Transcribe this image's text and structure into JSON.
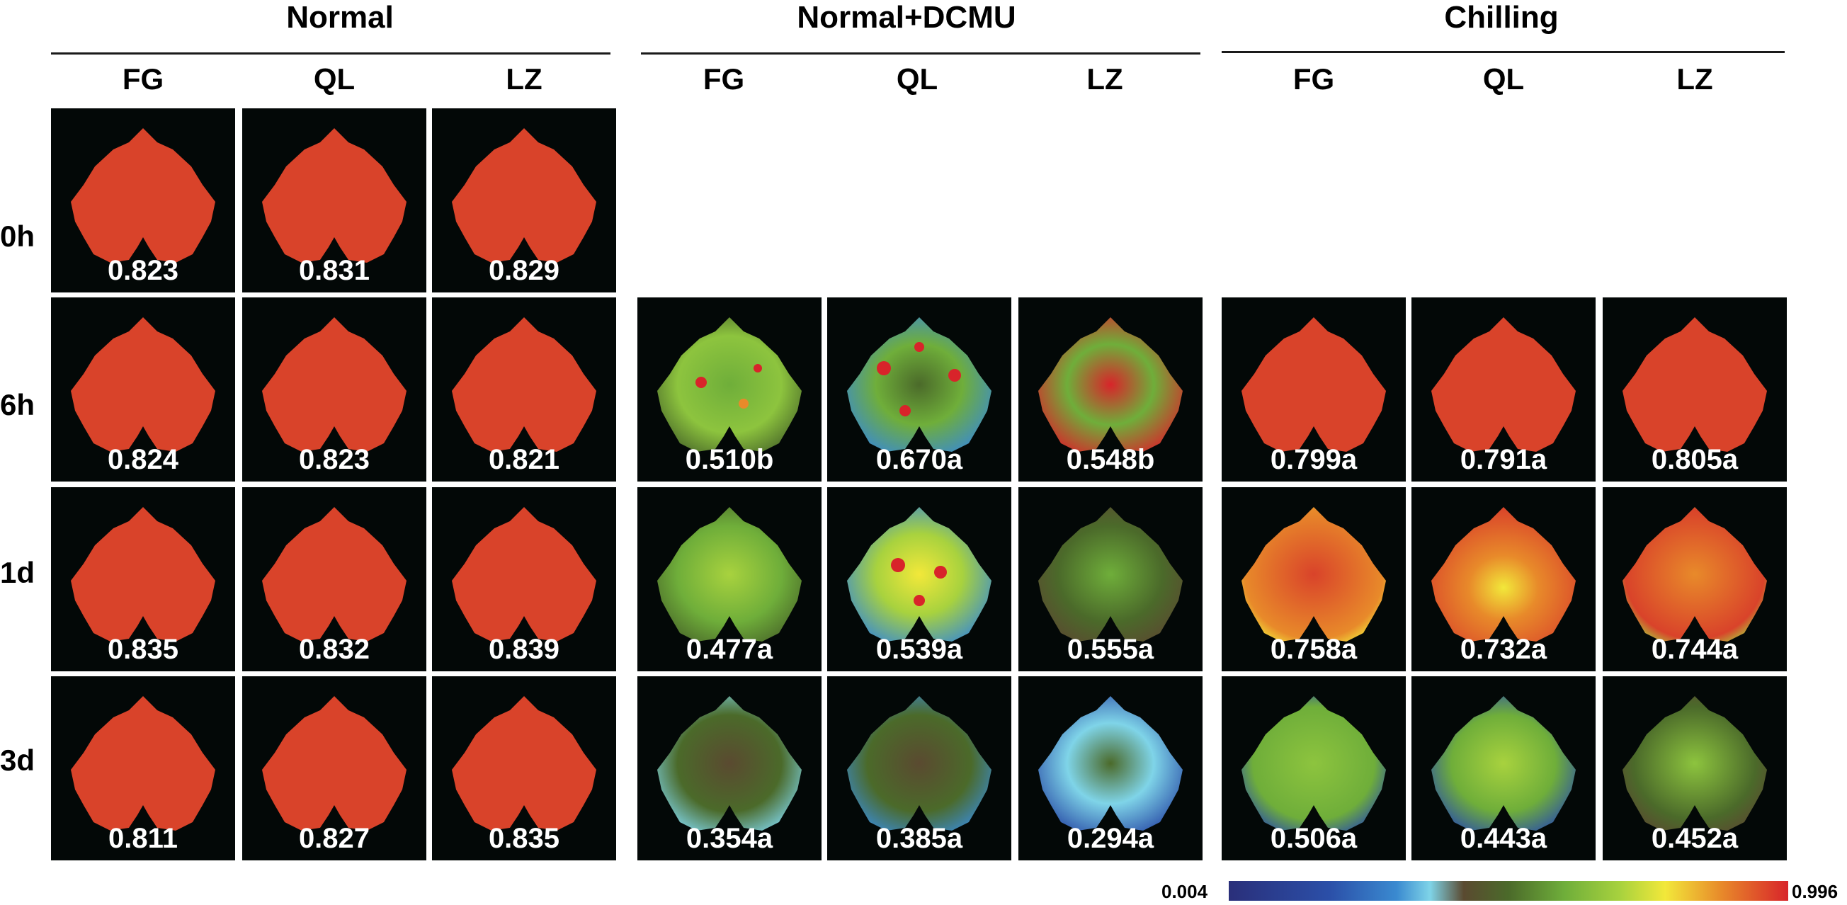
{
  "groups": [
    {
      "title": "Normal",
      "columns": [
        "FG",
        "QL",
        "LZ"
      ]
    },
    {
      "title": "Normal+DCMU",
      "columns": [
        "FG",
        "QL",
        "LZ"
      ]
    },
    {
      "title": "Chilling",
      "columns": [
        "FG",
        "QL",
        "LZ"
      ]
    }
  ],
  "rows": [
    "0h",
    "6h",
    "1d",
    "3d"
  ],
  "values": {
    "normal": [
      [
        "0.823",
        "0.831",
        "0.829"
      ],
      [
        "0.824",
        "0.823",
        "0.821"
      ],
      [
        "0.835",
        "0.832",
        "0.839"
      ],
      [
        "0.811",
        "0.827",
        "0.835"
      ]
    ],
    "dcmu": [
      [
        "0.510b",
        "0.670a",
        "0.548b"
      ],
      [
        "0.477a",
        "0.539a",
        "0.555a"
      ],
      [
        "0.354a",
        "0.385a",
        "0.294a"
      ]
    ],
    "chilling": [
      [
        "0.799a",
        "0.791a",
        "0.805a"
      ],
      [
        "0.758a",
        "0.732a",
        "0.744a"
      ],
      [
        "0.506a",
        "0.443a",
        "0.452a"
      ]
    ]
  },
  "color_scale": {
    "min": "0.004",
    "max": "0.996"
  },
  "colors": {
    "healthy_leaf": "#d9432a",
    "background": "#030807"
  }
}
